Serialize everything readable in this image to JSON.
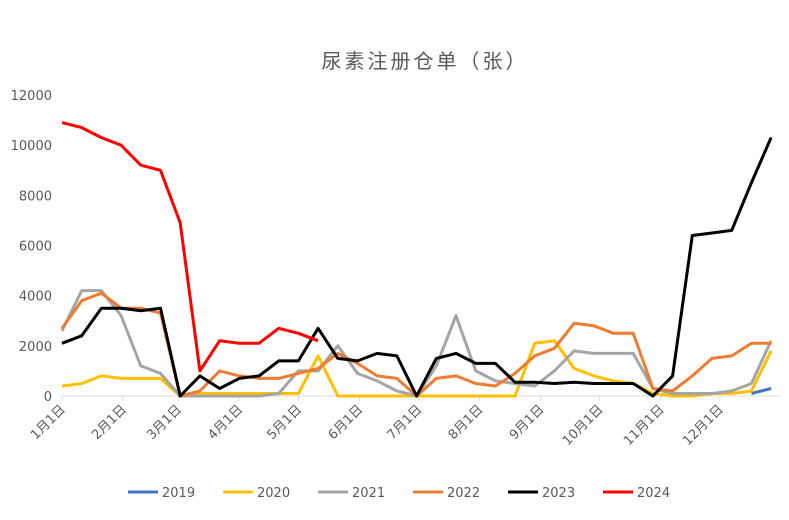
{
  "chart_data": {
    "type": "line",
    "title": "尿素注册仓单（张）",
    "x": [
      0,
      10,
      20,
      30,
      40,
      50,
      60,
      70,
      80,
      90,
      100,
      110,
      120,
      130,
      140,
      150,
      160,
      170,
      180,
      190,
      200,
      210,
      220,
      230,
      240,
      250,
      260,
      270,
      280,
      290,
      300,
      310,
      320,
      330,
      340,
      350,
      360
    ],
    "xlim": [
      0,
      364
    ],
    "xticks": [
      {
        "value": 0,
        "label": "1月1日"
      },
      {
        "value": 31,
        "label": "2月1日"
      },
      {
        "value": 59,
        "label": "3月1日"
      },
      {
        "value": 90,
        "label": "4月1日"
      },
      {
        "value": 120,
        "label": "5月1日"
      },
      {
        "value": 151,
        "label": "6月1日"
      },
      {
        "value": 181,
        "label": "7月1日"
      },
      {
        "value": 212,
        "label": "8月1日"
      },
      {
        "value": 243,
        "label": "9月1日"
      },
      {
        "value": 273,
        "label": "10月1日"
      },
      {
        "value": 304,
        "label": "11月1日"
      },
      {
        "value": 334,
        "label": "12月1日"
      }
    ],
    "ylim": [
      0,
      12000
    ],
    "yticks": [
      0,
      2000,
      4000,
      6000,
      8000,
      10000,
      12000
    ],
    "series": [
      {
        "name": "2019",
        "color": "#4472c4",
        "values": [
          null,
          null,
          null,
          null,
          null,
          null,
          null,
          null,
          null,
          null,
          null,
          null,
          null,
          null,
          null,
          null,
          null,
          null,
          null,
          null,
          null,
          null,
          null,
          null,
          null,
          null,
          null,
          null,
          null,
          null,
          null,
          null,
          null,
          null,
          null,
          100,
          300
        ]
      },
      {
        "name": "2020",
        "color": "#ffc000",
        "values": [
          400,
          500,
          800,
          700,
          700,
          700,
          0,
          100,
          100,
          100,
          100,
          100,
          100,
          1600,
          0,
          0,
          0,
          0,
          0,
          0,
          0,
          0,
          0,
          0,
          2100,
          2200,
          1100,
          800,
          600,
          500,
          100,
          0,
          0,
          100,
          100,
          200,
          1800
        ]
      },
      {
        "name": "2021",
        "color": "#a5a5a5",
        "values": [
          2600,
          4200,
          4200,
          3200,
          1200,
          900,
          0,
          0,
          0,
          0,
          0,
          100,
          1000,
          1000,
          2000,
          900,
          600,
          200,
          0,
          1200,
          3200,
          1000,
          600,
          500,
          400,
          1000,
          1800,
          1700,
          1700,
          1700,
          300,
          100,
          100,
          100,
          200,
          500,
          2200
        ]
      },
      {
        "name": "2022",
        "color": "#ed7d31",
        "values": [
          2700,
          3800,
          4100,
          3500,
          3500,
          3300,
          0,
          200,
          1000,
          800,
          700,
          700,
          900,
          1100,
          1700,
          1300,
          800,
          700,
          0,
          700,
          800,
          500,
          400,
          900,
          1600,
          1900,
          2900,
          2800,
          2500,
          2500,
          300,
          200,
          800,
          1500,
          1600,
          2100,
          2100
        ]
      },
      {
        "name": "2023",
        "color": "#000000",
        "values": [
          2100,
          2400,
          3500,
          3500,
          3400,
          3500,
          0,
          800,
          300,
          700,
          800,
          1400,
          1400,
          2700,
          1500,
          1400,
          1700,
          1600,
          0,
          1500,
          1700,
          1300,
          1300,
          550,
          550,
          500,
          550,
          500,
          500,
          500,
          0,
          800,
          6400,
          6500,
          6600,
          8500,
          10300
        ]
      },
      {
        "name": "2024",
        "color": "#ff0000",
        "values": [
          10900,
          10700,
          10300,
          10000,
          9200,
          9000,
          6900,
          1000,
          2200,
          2100,
          2100,
          2700,
          2500,
          2200,
          null,
          null,
          null,
          null,
          null,
          null,
          null,
          null,
          null,
          null,
          null,
          null,
          null,
          null,
          null,
          null,
          null,
          null,
          null,
          null,
          null,
          null,
          null
        ]
      }
    ]
  }
}
